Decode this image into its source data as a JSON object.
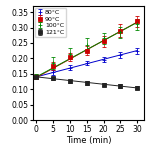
{
  "chart_data": {
    "type": "scatter",
    "xlabel": "Time (min)",
    "xlim": [
      -1,
      32
    ],
    "ylim": [
      0.0,
      0.37
    ],
    "xticks": [
      0,
      5,
      10,
      15,
      20,
      25,
      30
    ],
    "yticks": [
      {
        "value": 0.0,
        "label": "0.00"
      },
      {
        "value": 0.05,
        "label": "0.05"
      },
      {
        "value": 0.1,
        "label": "0.10"
      },
      {
        "value": 0.15,
        "label": "0.15"
      },
      {
        "value": 0.2,
        "label": "0.20"
      },
      {
        "value": 0.25,
        "label": "0.25"
      },
      {
        "value": 0.3,
        "label": "0.30"
      },
      {
        "value": 0.35,
        "label": "0.35"
      }
    ],
    "grid": false,
    "legend": "upper left",
    "series": [
      {
        "name": "80°C",
        "color": "#0000cc",
        "marker": "plus",
        "x": [
          0,
          5,
          10,
          15,
          20,
          25,
          30
        ],
        "values": [
          0.14,
          0.155,
          0.17,
          0.185,
          0.195,
          0.21,
          0.225
        ],
        "yerr": [
          0.008,
          0.008,
          0.008,
          0.008,
          0.008,
          0.01,
          0.01
        ]
      },
      {
        "name": "90°C",
        "color": "#cc0000",
        "marker": "square",
        "x": [
          0,
          5,
          10,
          15,
          20,
          25,
          30
        ],
        "values": [
          0.14,
          0.175,
          0.205,
          0.225,
          0.255,
          0.29,
          0.32
        ],
        "yerr": [
          0.008,
          0.012,
          0.012,
          0.015,
          0.018,
          0.022,
          0.018
        ]
      },
      {
        "name": "100°C",
        "color": "#008800",
        "marker": "plus",
        "x": [
          0,
          5,
          10,
          15,
          20,
          25,
          30
        ],
        "values": [
          0.14,
          0.185,
          0.215,
          0.245,
          0.265,
          0.285,
          0.31
        ],
        "yerr": [
          0.008,
          0.018,
          0.018,
          0.022,
          0.018,
          0.018,
          0.018
        ]
      },
      {
        "name": "121°C",
        "color": "#222222",
        "marker": "square",
        "x": [
          0,
          5,
          10,
          15,
          20,
          25,
          30
        ],
        "values": [
          0.14,
          0.135,
          0.125,
          0.12,
          0.115,
          0.11,
          0.105
        ],
        "yerr": [
          0.006,
          0.006,
          0.006,
          0.006,
          0.006,
          0.006,
          0.006
        ]
      },
      {
        "type": "line",
        "color": "#0000cc",
        "x": [
          0,
          30
        ],
        "values": [
          0.14,
          0.2255
        ]
      },
      {
        "type": "line",
        "color": "#cc0000",
        "x": [
          0,
          30
        ],
        "values": [
          0.138,
          0.318
        ]
      },
      {
        "type": "line",
        "color": "#008800",
        "x": [
          0,
          30
        ],
        "values": [
          0.14,
          0.317
        ]
      },
      {
        "type": "line",
        "color": "#222222",
        "x": [
          0,
          30
        ],
        "values": [
          0.14,
          0.104
        ]
      }
    ]
  }
}
